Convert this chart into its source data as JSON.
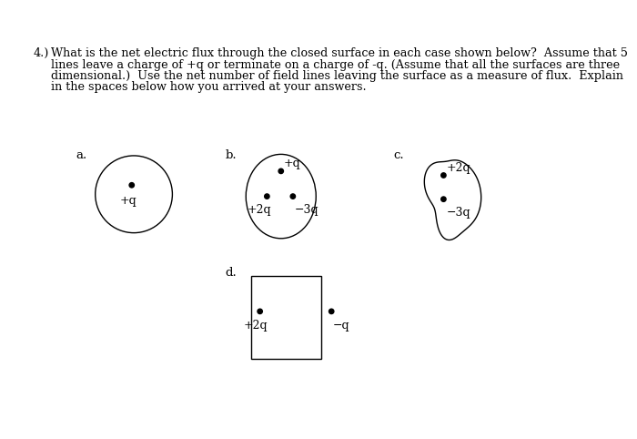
{
  "title_number": "4.)",
  "title_text": "What is the net electric flux through the closed surface in each case shown below?  Assume that 5",
  "title_line2": "lines leave a charge of +q or terminate on a charge of -q. (Assume that all the surfaces are three",
  "title_line3": "dimensional.)  Use the net number of field lines leaving the surface as a measure of flux.  Explain",
  "title_line4": "in the spaces below how you arrived at your answers.",
  "bg_color": "#ffffff",
  "text_color": "#000000",
  "figure_width": 7.66,
  "figure_height": 6.01
}
